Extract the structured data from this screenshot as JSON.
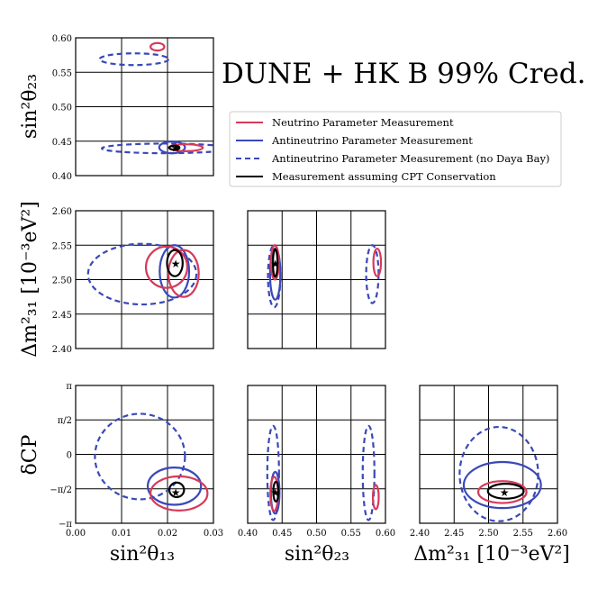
{
  "chart_data": {
    "type": "corner-contour",
    "title": "DUNE  +  HK B 99% Cred.",
    "colors": {
      "neutrino": "#d63a5a",
      "antineutrino": "#3a48b8",
      "cpt": "#000000",
      "grid": "#000000"
    },
    "legend": {
      "placement": "center-right",
      "items": [
        {
          "label": "Neutrino Parameter Measurement",
          "color": "#d63a5a",
          "dash": false
        },
        {
          "label": "Antineutrino Parameter Measurement",
          "color": "#3a48b8",
          "dash": false
        },
        {
          "label": "Antineutrino Parameter Measurement (no Daya Bay)",
          "color": "#3a48b8",
          "dash": true
        },
        {
          "label": "Measurement assuming CPT Conservation",
          "color": "#000000",
          "dash": false
        }
      ]
    },
    "axes": {
      "s13": {
        "label": "sin²θ₁₃",
        "range": [
          0.0,
          0.03
        ],
        "ticks": [
          0.0,
          0.01,
          0.02,
          0.03
        ],
        "tick_labels": [
          "0.00",
          "0.01",
          "0.02",
          "0.03"
        ]
      },
      "s23": {
        "label": "sin²θ₂₃",
        "range": [
          0.4,
          0.6
        ],
        "ticks": [
          0.4,
          0.45,
          0.5,
          0.55,
          0.6
        ],
        "tick_labels": [
          "0.40",
          "0.45",
          "0.50",
          "0.55",
          "0.60"
        ]
      },
      "dm": {
        "label": "Δm²₃₁ [10⁻³eV²]",
        "range": [
          2.4,
          2.6
        ],
        "ticks": [
          2.4,
          2.45,
          2.5,
          2.55,
          2.6
        ],
        "tick_labels": [
          "2.40",
          "2.45",
          "2.50",
          "2.55",
          "2.60"
        ]
      },
      "dcp": {
        "label": "δCP",
        "range": [
          -3.14159,
          3.14159
        ],
        "ticks": [
          -3.14159,
          -1.5708,
          0,
          1.5708,
          3.14159
        ],
        "tick_labels": [
          "−π",
          "−π/2",
          "0",
          "π/2",
          "π"
        ]
      }
    },
    "best_fit": {
      "s13": 0.0218,
      "s23": 0.44,
      "dm": 2.523,
      "dcp": -1.75
    },
    "panels": [
      {
        "name": "s13-vs-s23",
        "x": "s13",
        "y": "s23",
        "contours": [
          {
            "series": "antineutrino-no-dayabay",
            "ellipses": [
              {
                "cx": 0.0127,
                "cy": 0.569,
                "rx": 0.0075,
                "ry": 0.0085
              },
              {
                "cx": 0.0195,
                "cy": 0.4395,
                "rx": 0.0138,
                "ry": 0.007
              }
            ]
          },
          {
            "series": "antineutrino",
            "ellipses": [
              {
                "cx": 0.021,
                "cy": 0.441,
                "rx": 0.0028,
                "ry": 0.0085
              }
            ]
          },
          {
            "series": "neutrino",
            "ellipses": [
              {
                "cx": 0.0178,
                "cy": 0.587,
                "rx": 0.0015,
                "ry": 0.0055
              },
              {
                "cx": 0.024,
                "cy": 0.4405,
                "rx": 0.0037,
                "ry": 0.005
              }
            ]
          },
          {
            "series": "cpt",
            "ellipses": [
              {
                "cx": 0.0215,
                "cy": 0.4405,
                "rx": 0.0011,
                "ry": 0.003
              }
            ]
          }
        ]
      },
      {
        "name": "s13-vs-dm",
        "x": "s13",
        "y": "dm",
        "contours": [
          {
            "series": "antineutrino-no-dayabay",
            "ellipses": [
              {
                "cx": 0.0145,
                "cy": 2.508,
                "rx": 0.0118,
                "ry": 0.044
              }
            ]
          },
          {
            "series": "antineutrino",
            "ellipses": [
              {
                "cx": 0.0215,
                "cy": 2.512,
                "rx": 0.0032,
                "ry": 0.038
              }
            ]
          },
          {
            "series": "neutrino",
            "ellipses": [
              {
                "cx": 0.0198,
                "cy": 2.518,
                "rx": 0.0045,
                "ry": 0.03
              },
              {
                "cx": 0.0235,
                "cy": 2.509,
                "rx": 0.0033,
                "ry": 0.034
              }
            ]
          },
          {
            "series": "cpt",
            "ellipses": [
              {
                "cx": 0.0216,
                "cy": 2.524,
                "rx": 0.0017,
                "ry": 0.019
              }
            ]
          }
        ]
      },
      {
        "name": "s23-vs-dm",
        "x": "s23",
        "y": "dm",
        "contours": [
          {
            "series": "antineutrino-no-dayabay",
            "ellipses": [
              {
                "cx": 0.4385,
                "cy": 2.505,
                "rx": 0.009,
                "ry": 0.045
              },
              {
                "cx": 0.581,
                "cy": 2.508,
                "rx": 0.009,
                "ry": 0.042
              }
            ]
          },
          {
            "series": "antineutrino",
            "ellipses": [
              {
                "cx": 0.44,
                "cy": 2.508,
                "rx": 0.0075,
                "ry": 0.037
              }
            ]
          },
          {
            "series": "neutrino",
            "ellipses": [
              {
                "cx": 0.4395,
                "cy": 2.525,
                "rx": 0.0058,
                "ry": 0.025
              },
              {
                "cx": 0.588,
                "cy": 2.525,
                "rx": 0.0055,
                "ry": 0.02
              }
            ]
          },
          {
            "series": "cpt",
            "ellipses": [
              {
                "cx": 0.44,
                "cy": 2.524,
                "rx": 0.0033,
                "ry": 0.02
              }
            ]
          }
        ]
      },
      {
        "name": "s13-vs-dcp",
        "x": "s13",
        "y": "dcp",
        "contours": [
          {
            "series": "antineutrino-no-dayabay",
            "ellipses": [
              {
                "cx": 0.014,
                "cy": -0.1,
                "rx": 0.0098,
                "ry": 1.95
              }
            ]
          },
          {
            "series": "antineutrino",
            "ellipses": [
              {
                "cx": 0.0215,
                "cy": -1.45,
                "rx": 0.0058,
                "ry": 0.85
              }
            ]
          },
          {
            "series": "neutrino",
            "ellipses": [
              {
                "cx": 0.0225,
                "cy": -1.78,
                "rx": 0.0062,
                "ry": 0.78
              }
            ]
          },
          {
            "series": "cpt",
            "ellipses": [
              {
                "cx": 0.022,
                "cy": -1.62,
                "rx": 0.0016,
                "ry": 0.33
              }
            ]
          }
        ]
      },
      {
        "name": "s23-vs-dcp",
        "x": "s23",
        "y": "dcp",
        "contours": [
          {
            "series": "antineutrino-no-dayabay",
            "ellipses": [
              {
                "cx": 0.437,
                "cy": -0.85,
                "rx": 0.0085,
                "ry": 2.15
              },
              {
                "cx": 0.5755,
                "cy": -0.85,
                "rx": 0.0085,
                "ry": 2.15
              }
            ]
          },
          {
            "series": "antineutrino",
            "ellipses": [
              {
                "cx": 0.44,
                "cy": -1.75,
                "rx": 0.0062,
                "ry": 0.95
              }
            ]
          },
          {
            "series": "neutrino",
            "ellipses": [
              {
                "cx": 0.4385,
                "cy": -1.8,
                "rx": 0.0055,
                "ry": 0.78
              },
              {
                "cx": 0.586,
                "cy": -1.95,
                "rx": 0.0042,
                "ry": 0.55
              }
            ]
          },
          {
            "series": "cpt",
            "ellipses": [
              {
                "cx": 0.441,
                "cy": -1.7,
                "rx": 0.0038,
                "ry": 0.45
              }
            ]
          }
        ]
      },
      {
        "name": "dm-vs-dcp",
        "x": "dm",
        "y": "dcp",
        "contours": [
          {
            "series": "antineutrino-no-dayabay",
            "ellipses": [
              {
                "cx": 2.515,
                "cy": -0.9,
                "rx": 0.057,
                "ry": 2.15
              }
            ]
          },
          {
            "series": "antineutrino",
            "ellipses": [
              {
                "cx": 2.52,
                "cy": -1.4,
                "rx": 0.056,
                "ry": 1.05
              }
            ]
          },
          {
            "series": "neutrino",
            "ellipses": [
              {
                "cx": 2.52,
                "cy": -1.72,
                "rx": 0.035,
                "ry": 0.5
              }
            ]
          },
          {
            "series": "cpt",
            "ellipses": [
              {
                "cx": 2.525,
                "cy": -1.68,
                "rx": 0.026,
                "ry": 0.34
              }
            ]
          }
        ]
      }
    ]
  }
}
